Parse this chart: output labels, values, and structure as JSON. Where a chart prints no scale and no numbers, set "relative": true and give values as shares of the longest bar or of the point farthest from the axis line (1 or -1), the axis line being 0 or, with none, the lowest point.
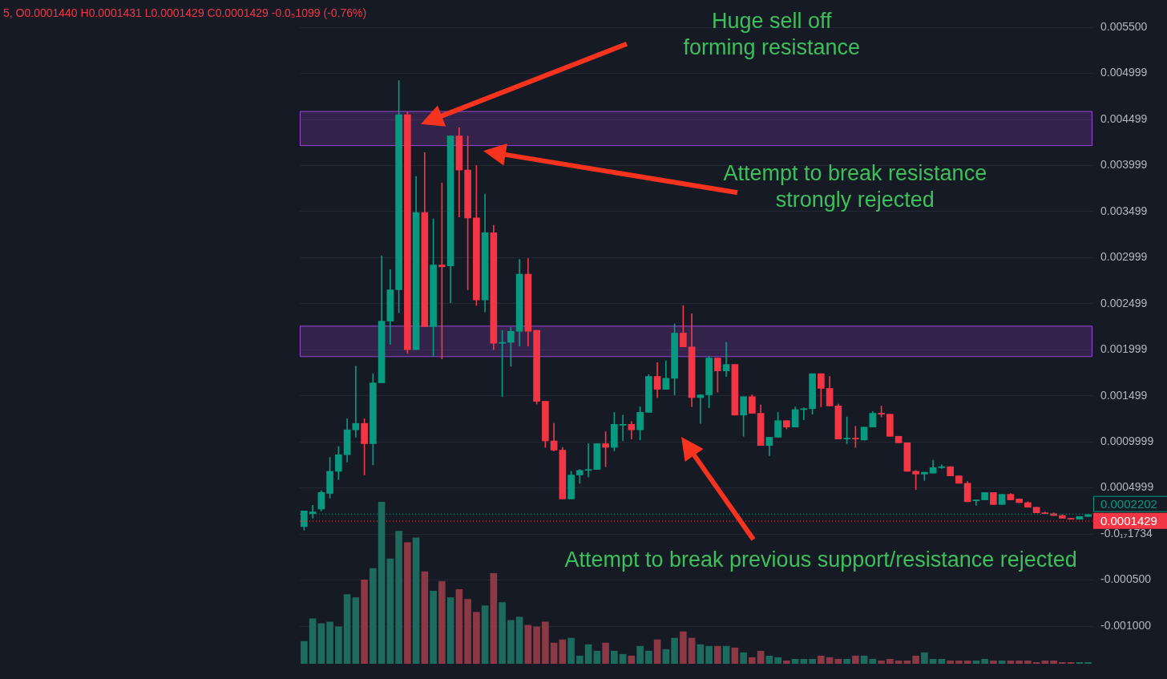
{
  "chart_data": [
    {
      "type": "candlestick",
      "categories": [
        null,
        null,
        null,
        null,
        null,
        null,
        null,
        null,
        null,
        null,
        null,
        null,
        null,
        null,
        null,
        null,
        null,
        null,
        null,
        null,
        null,
        null,
        null,
        null,
        null,
        null,
        null,
        null,
        null,
        null,
        null,
        null,
        null,
        null,
        null,
        null,
        null,
        null,
        null,
        null,
        null,
        null,
        null,
        null,
        null,
        null,
        null,
        null,
        null,
        null,
        null,
        null,
        null,
        null,
        null,
        null,
        null,
        null,
        null,
        null,
        null,
        null,
        null,
        null,
        null,
        null,
        null,
        null,
        null,
        null,
        null,
        null,
        null,
        null,
        null,
        null,
        null,
        null,
        null,
        null,
        null,
        null,
        null,
        null,
        null,
        null,
        null,
        null,
        null,
        null,
        null,
        null
      ],
      "ohlc": [
        [
          8e-05,
          0.00025,
          4e-05,
          0.00025
        ],
        [
          0.00022,
          0.00031,
          0.00017,
          0.00024
        ],
        [
          0.00027,
          0.00047,
          0.00025,
          0.00045
        ],
        [
          0.00044,
          0.00083,
          0.00039,
          0.00068
        ],
        [
          0.00068,
          0.00095,
          0.00059,
          0.00086
        ],
        [
          0.00086,
          0.00125,
          0.00078,
          0.00113
        ],
        [
          0.00113,
          0.00182,
          0.00105,
          0.0012
        ],
        [
          0.0012,
          0.00125,
          0.00064,
          0.00098
        ],
        [
          0.00098,
          0.00174,
          0.00075,
          0.00164
        ],
        [
          0.00164,
          0.00302,
          0.00164,
          0.00231
        ],
        [
          0.00231,
          0.00287,
          0.00206,
          0.00265
        ],
        [
          0.00265,
          0.00492,
          0.0024,
          0.00455
        ],
        [
          0.00455,
          0.00458,
          0.00196,
          0.002
        ],
        [
          0.002,
          0.00388,
          0.002,
          0.00349
        ],
        [
          0.00349,
          0.00414,
          0.00225,
          0.00225
        ],
        [
          0.00225,
          0.00342,
          0.00193,
          0.00292
        ],
        [
          0.00292,
          0.00381,
          0.0019,
          0.0029
        ],
        [
          0.00291,
          0.00432,
          0.00251,
          0.00432
        ],
        [
          0.00432,
          0.00441,
          0.00344,
          0.00395
        ],
        [
          0.00395,
          0.00432,
          0.00265,
          0.00343
        ],
        [
          0.00343,
          0.004,
          0.00248,
          0.00254
        ],
        [
          0.00254,
          0.00369,
          0.00241,
          0.00327
        ],
        [
          0.00327,
          0.00335,
          0.002,
          0.00207
        ],
        [
          0.00207,
          0.00221,
          0.00149,
          0.00208
        ],
        [
          0.00208,
          0.00224,
          0.00182,
          0.0022
        ],
        [
          0.0022,
          0.00298,
          0.00204,
          0.00282
        ],
        [
          0.00282,
          0.00299,
          0.00204,
          0.0022
        ],
        [
          0.00221,
          0.00221,
          0.00141,
          0.00144
        ],
        [
          0.00144,
          0.00144,
          0.00094,
          0.00101
        ],
        [
          0.00101,
          0.0012,
          0.0009,
          0.00091
        ],
        [
          0.00091,
          0.00094,
          0.00038,
          0.00038
        ],
        [
          0.00038,
          0.00068,
          0.00038,
          0.00064
        ],
        [
          0.00064,
          0.0007,
          0.00055,
          0.00069
        ],
        [
          0.00069,
          0.00098,
          0.00062,
          0.0007
        ],
        [
          0.0007,
          0.00098,
          0.0007,
          0.00098
        ],
        [
          0.00098,
          0.00111,
          0.00073,
          0.00094
        ],
        [
          0.00094,
          0.00132,
          0.0009,
          0.00119
        ],
        [
          0.00118,
          0.00129,
          0.00101,
          0.00119
        ],
        [
          0.00119,
          0.00122,
          0.00103,
          0.00113
        ],
        [
          0.00113,
          0.00138,
          0.00102,
          0.00132
        ],
        [
          0.00132,
          0.00173,
          0.00132,
          0.00171
        ],
        [
          0.00171,
          0.00186,
          0.00148,
          0.00157
        ],
        [
          0.00157,
          0.00188,
          0.00157,
          0.00169
        ],
        [
          0.00169,
          0.00228,
          0.00151,
          0.00218
        ],
        [
          0.00218,
          0.00248,
          0.00203,
          0.00203
        ],
        [
          0.00203,
          0.00239,
          0.00138,
          0.00148
        ],
        [
          0.00148,
          0.00151,
          0.0012,
          0.00151
        ],
        [
          0.00151,
          0.00193,
          0.00137,
          0.00191
        ],
        [
          0.00191,
          0.00191,
          0.00154,
          0.00177
        ],
        [
          0.00177,
          0.00208,
          0.00171,
          0.00184
        ],
        [
          0.00184,
          0.00184,
          0.00129,
          0.00129
        ],
        [
          0.00129,
          0.00149,
          0.00106,
          0.00149
        ],
        [
          0.00149,
          0.00151,
          0.00131,
          0.00131
        ],
        [
          0.00131,
          0.0014,
          0.00096,
          0.00096
        ],
        [
          0.00096,
          0.00105,
          0.00085,
          0.00105
        ],
        [
          0.00105,
          0.00132,
          0.00105,
          0.00123
        ],
        [
          0.00123,
          0.00123,
          0.00114,
          0.00116
        ],
        [
          0.00116,
          0.00138,
          0.00116,
          0.00135
        ],
        [
          0.00135,
          0.00137,
          0.00124,
          0.00136
        ],
        [
          0.00136,
          0.00174,
          0.0013,
          0.00174
        ],
        [
          0.00174,
          0.00174,
          0.00138,
          0.00158
        ],
        [
          0.00158,
          0.00171,
          0.00139,
          0.00139
        ],
        [
          0.00139,
          0.00141,
          0.00103,
          0.00103
        ],
        [
          0.00103,
          0.00127,
          0.00098,
          0.00104
        ],
        [
          0.00104,
          0.00117,
          0.00094,
          0.00103
        ],
        [
          0.00102,
          0.00116,
          0.00102,
          0.00116
        ],
        [
          0.00116,
          0.00133,
          0.00116,
          0.00131
        ],
        [
          0.00131,
          0.00139,
          0.00127,
          0.0013
        ],
        [
          0.0013,
          0.0013,
          0.00106,
          0.00106
        ],
        [
          0.00106,
          0.00106,
          0.00099,
          0.00099
        ],
        [
          0.00099,
          0.00099,
          0.00068,
          0.00068
        ],
        [
          0.00068,
          0.00069,
          0.00048,
          0.00065
        ],
        [
          0.00065,
          0.00067,
          0.00058,
          0.00067
        ],
        [
          0.00066,
          0.0008,
          0.00066,
          0.00072
        ],
        [
          0.00072,
          0.00075,
          0.00071,
          0.00073
        ],
        [
          0.00073,
          0.00073,
          0.00063,
          0.00063
        ],
        [
          0.00063,
          0.00063,
          0.00055,
          0.00055
        ],
        [
          0.00055,
          0.00057,
          0.00035,
          0.00035
        ],
        [
          0.00036,
          0.00037,
          0.00031,
          0.00037
        ],
        [
          0.00037,
          0.00045,
          0.00037,
          0.00045
        ],
        [
          0.00045,
          0.00045,
          0.00032,
          0.00032
        ],
        [
          0.00032,
          0.00043,
          0.00032,
          0.00043
        ],
        [
          0.00043,
          0.00044,
          0.00037,
          0.00037
        ],
        [
          0.00038,
          0.00038,
          0.00034,
          0.00034
        ],
        [
          0.00034,
          0.00035,
          0.00029,
          0.00029
        ],
        [
          0.00029,
          0.00029,
          0.00023,
          0.00023
        ],
        [
          0.00023,
          0.00024,
          0.00022,
          0.00022
        ],
        [
          0.00022,
          0.00023,
          0.0002,
          0.0002
        ],
        [
          0.0002,
          0.00021,
          0.00017,
          0.00017
        ],
        [
          0.00017,
          0.00017,
          0.00016,
          0.00016
        ],
        [
          0.00016,
          0.00019,
          0.00016,
          0.00019
        ],
        [
          0.00019,
          0.00021,
          0.00019,
          0.00021
        ]
      ],
      "colors": [
        "#089981",
        "#089981",
        "#089981",
        "#089981",
        "#089981",
        "#089981",
        "#089981",
        "#f23645",
        "#089981",
        "#089981",
        "#089981",
        "#089981",
        "#f23645",
        "#089981",
        "#f23645",
        "#089981",
        "#f23645",
        "#089981",
        "#f23645",
        "#f23645",
        "#f23645",
        "#089981",
        "#f23645",
        "#089981",
        "#089981",
        "#089981",
        "#f23645",
        "#f23645",
        "#f23645",
        "#f23645",
        "#f23645",
        "#089981",
        "#089981",
        "#089981",
        "#089981",
        "#f23645",
        "#089981",
        "#089981",
        "#f23645",
        "#089981",
        "#089981",
        "#f23645",
        "#089981",
        "#089981",
        "#f23645",
        "#f23645",
        "#089981",
        "#089981",
        "#f23645",
        "#089981",
        "#f23645",
        "#089981",
        "#f23645",
        "#f23645",
        "#089981",
        "#089981",
        "#f23645",
        "#089981",
        "#089981",
        "#089981",
        "#f23645",
        "#f23645",
        "#f23645",
        "#089981",
        "#f23645",
        "#089981",
        "#089981",
        "#f23645",
        "#f23645",
        "#f23645",
        "#f23645",
        "#f23645",
        "#089981",
        "#089981",
        "#089981",
        "#f23645",
        "#f23645",
        "#f23645",
        "#089981",
        "#089981",
        "#f23645",
        "#089981",
        "#f23645",
        "#f23645",
        "#f23645",
        "#f23645",
        "#f23645",
        "#f23645",
        "#f23645",
        "#f23645",
        "#089981",
        "#089981"
      ],
      "ylim": [
        -0.001,
        0.0055
      ],
      "yticks": [
        {
          "value": 0.0055,
          "label": "0.005500"
        },
        0.004999,
        0.004499,
        0.003999,
        0.003499,
        0.002999,
        0.002499,
        0.001999,
        0.001499,
        0.0009999,
        0.0004999,
        {
          "value": 0,
          "label": "-0.0₁₇1734"
        },
        {
          "value": -0.0005,
          "label": "-0.000500"
        },
        {
          "value": -0.001,
          "label": "-0.001000"
        }
      ],
      "grid": "y",
      "tick_labels": "y",
      "ref_lines": [
        {
          "axis": "y",
          "value": 0.0001429,
          "label": "0.0001429",
          "color": "#f23645",
          "line_style": "dotted"
        },
        {
          "axis": "y",
          "value": 0.0002202,
          "label": "0.0002202",
          "color": "#089981",
          "line_style": "dotted"
        }
      ],
      "bands": [
        {
          "axis": "y",
          "from": 0.00422,
          "to": 0.00459,
          "label": null,
          "color": "#9b45d6"
        },
        {
          "axis": "y",
          "from": 0.00193,
          "to": 0.00226,
          "label": null,
          "color": "#9b45d6"
        }
      ],
      "annotations": [
        "5, O0.0001440 H0.0001431 L0.0001429 C0.0001429 -0.0₅1099 (-0.76%)",
        "Huge sell off\nforming resistance",
        "Attempt to break resistance\nstrongly rejected",
        "Attempt to break previous support/resistance rejected"
      ]
    },
    {
      "type": "bar",
      "relative": true,
      "categories": [
        null,
        null,
        null,
        null,
        null,
        null,
        null,
        null,
        null,
        null,
        null,
        null,
        null,
        null,
        null,
        null,
        null,
        null,
        null,
        null,
        null,
        null,
        null,
        null,
        null,
        null,
        null,
        null,
        null,
        null,
        null,
        null,
        null,
        null,
        null,
        null,
        null,
        null,
        null,
        null,
        null,
        null,
        null,
        null,
        null,
        null,
        null,
        null,
        null,
        null,
        null,
        null,
        null,
        null,
        null,
        null,
        null,
        null,
        null,
        null,
        null,
        null,
        null,
        null,
        null,
        null,
        null,
        null,
        null,
        null,
        null,
        null,
        null,
        null,
        null,
        null,
        null,
        null,
        null,
        null,
        null,
        null,
        null,
        null,
        null,
        null,
        null,
        null,
        null,
        null,
        null,
        null
      ],
      "values": [
        0.14,
        0.28,
        0.25,
        0.26,
        0.23,
        0.43,
        0.41,
        0.52,
        0.59,
        1,
        0.65,
        0.82,
        0.75,
        0.78,
        0.57,
        0.45,
        0.51,
        0.41,
        0.46,
        0.4,
        0.32,
        0.36,
        0.56,
        0.38,
        0.27,
        0.29,
        0.24,
        0.23,
        0.26,
        0.13,
        0.15,
        0.16,
        0.05,
        0.12,
        0.08,
        0.13,
        0.08,
        0.06,
        0.05,
        0.11,
        0.08,
        0.15,
        0.09,
        0.16,
        0.2,
        0.16,
        0.12,
        0.11,
        0.11,
        0.11,
        0.1,
        0.07,
        0.04,
        0.08,
        0.05,
        0.04,
        0.02,
        0.03,
        0.03,
        0.03,
        0.05,
        0.04,
        0.03,
        0.03,
        0.05,
        0.05,
        0.03,
        0.02,
        0.03,
        0.02,
        0.02,
        0.05,
        0.07,
        0.03,
        0.03,
        0.02,
        0.02,
        0.02,
        0.02,
        0.03,
        0.02,
        0.02,
        0.02,
        0.02,
        0.02,
        0.01,
        0.02,
        0.02,
        0.01,
        0.01,
        0.01,
        0.01
      ],
      "colors": [
        "#1d6b5f",
        "#1d6b5f",
        "#1d6b5f",
        "#1d6b5f",
        "#1d6b5f",
        "#1d6b5f",
        "#1d6b5f",
        "#8b3a45",
        "#1d6b5f",
        "#1d6b5f",
        "#1d6b5f",
        "#1d6b5f",
        "#8b3a45",
        "#1d6b5f",
        "#8b3a45",
        "#1d6b5f",
        "#8b3a45",
        "#1d6b5f",
        "#8b3a45",
        "#8b3a45",
        "#8b3a45",
        "#1d6b5f",
        "#8b3a45",
        "#1d6b5f",
        "#1d6b5f",
        "#1d6b5f",
        "#8b3a45",
        "#8b3a45",
        "#8b3a45",
        "#8b3a45",
        "#8b3a45",
        "#1d6b5f",
        "#1d6b5f",
        "#1d6b5f",
        "#1d6b5f",
        "#8b3a45",
        "#1d6b5f",
        "#1d6b5f",
        "#8b3a45",
        "#1d6b5f",
        "#1d6b5f",
        "#8b3a45",
        "#1d6b5f",
        "#1d6b5f",
        "#8b3a45",
        "#8b3a45",
        "#1d6b5f",
        "#1d6b5f",
        "#8b3a45",
        "#1d6b5f",
        "#8b3a45",
        "#1d6b5f",
        "#8b3a45",
        "#8b3a45",
        "#1d6b5f",
        "#1d6b5f",
        "#8b3a45",
        "#1d6b5f",
        "#1d6b5f",
        "#1d6b5f",
        "#8b3a45",
        "#8b3a45",
        "#8b3a45",
        "#1d6b5f",
        "#8b3a45",
        "#1d6b5f",
        "#1d6b5f",
        "#8b3a45",
        "#8b3a45",
        "#8b3a45",
        "#8b3a45",
        "#8b3a45",
        "#1d6b5f",
        "#1d6b5f",
        "#1d6b5f",
        "#8b3a45",
        "#8b3a45",
        "#8b3a45",
        "#1d6b5f",
        "#1d6b5f",
        "#8b3a45",
        "#1d6b5f",
        "#8b3a45",
        "#8b3a45",
        "#8b3a45",
        "#8b3a45",
        "#8b3a45",
        "#8b3a45",
        "#8b3a45",
        "#8b3a45",
        "#1d6b5f",
        "#1d6b5f"
      ]
    }
  ]
}
